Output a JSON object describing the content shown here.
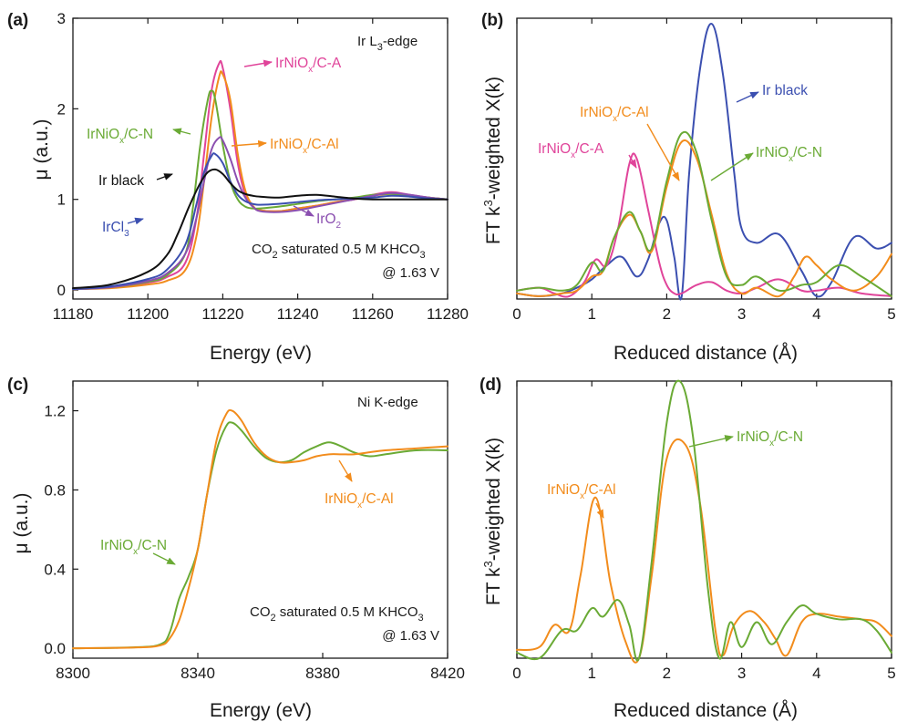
{
  "colors": {
    "pink": "#e0449a",
    "orange": "#f28c1c",
    "green": "#6aaa35",
    "blue": "#3b4fb0",
    "black": "#111111",
    "purple": "#8b4fb0"
  },
  "chart_data": [
    {
      "panel": "(a)",
      "type": "line",
      "xlabel": "Energy (eV)",
      "ylabel": "μ (a.u.)",
      "xlim": [
        11180,
        11280
      ],
      "ylim": [
        -0.1,
        3.0
      ],
      "xticks": [
        11180,
        11200,
        11220,
        11240,
        11260,
        11280
      ],
      "yticks": [
        0,
        1,
        2,
        3
      ],
      "annotations": {
        "edge": "Ir L3-edge",
        "condition": "CO2 saturated 0.5 M KHCO3",
        "potential": "@ 1.63 V"
      },
      "series": [
        {
          "name": "IrNiOx/C-A",
          "color": "#e0449a",
          "x": [
            11180,
            11190,
            11200,
            11205,
            11210,
            11213,
            11215,
            11217,
            11219,
            11220,
            11222,
            11224,
            11226,
            11228,
            11230,
            11235,
            11240,
            11245,
            11250,
            11255,
            11260,
            11265,
            11270,
            11275,
            11280
          ],
          "y": [
            0.01,
            0.03,
            0.08,
            0.14,
            0.3,
            0.8,
            1.5,
            2.2,
            2.5,
            2.45,
            2.0,
            1.4,
            1.05,
            0.92,
            0.88,
            0.87,
            0.9,
            0.93,
            0.97,
            1.0,
            1.05,
            1.08,
            1.05,
            1.02,
            1.0
          ]
        },
        {
          "name": "IrNiOx/C-Al",
          "color": "#f28c1c",
          "x": [
            11180,
            11190,
            11200,
            11205,
            11210,
            11213,
            11215,
            11217,
            11219,
            11220,
            11222,
            11224,
            11226,
            11228,
            11230,
            11235,
            11240,
            11245,
            11250,
            11255,
            11260,
            11265,
            11270,
            11275,
            11280
          ],
          "y": [
            0.01,
            0.02,
            0.06,
            0.1,
            0.22,
            0.6,
            1.2,
            1.9,
            2.35,
            2.38,
            2.1,
            1.5,
            1.1,
            0.93,
            0.88,
            0.87,
            0.9,
            0.93,
            0.97,
            1.0,
            1.04,
            1.06,
            1.04,
            1.02,
            1.0
          ]
        },
        {
          "name": "IrNiOx/C-N",
          "color": "#6aaa35",
          "x": [
            11180,
            11190,
            11200,
            11205,
            11210,
            11212,
            11214,
            11216,
            11217,
            11218,
            11220,
            11222,
            11224,
            11226,
            11228,
            11230,
            11235,
            11240,
            11245,
            11250,
            11255,
            11260,
            11265,
            11270,
            11275,
            11280
          ],
          "y": [
            0.01,
            0.03,
            0.09,
            0.16,
            0.4,
            0.9,
            1.6,
            2.1,
            2.2,
            2.1,
            1.6,
            1.2,
            1.0,
            0.92,
            0.9,
            0.9,
            0.92,
            0.95,
            0.98,
            1.0,
            1.02,
            1.05,
            1.06,
            1.04,
            1.02,
            1.0
          ]
        },
        {
          "name": "IrO2",
          "color": "#8b4fb0",
          "x": [
            11180,
            11190,
            11200,
            11205,
            11210,
            11213,
            11215,
            11217,
            11219,
            11220,
            11222,
            11224,
            11226,
            11228,
            11230,
            11235,
            11240,
            11245,
            11250,
            11255,
            11260,
            11265,
            11270,
            11275,
            11280
          ],
          "y": [
            0.01,
            0.03,
            0.1,
            0.18,
            0.4,
            0.8,
            1.2,
            1.55,
            1.68,
            1.65,
            1.45,
            1.2,
            1.02,
            0.92,
            0.87,
            0.86,
            0.88,
            0.92,
            0.96,
            1.0,
            1.04,
            1.07,
            1.05,
            1.02,
            1.0
          ]
        },
        {
          "name": "IrCl3",
          "color": "#3b4fb0",
          "x": [
            11180,
            11190,
            11200,
            11205,
            11210,
            11213,
            11215,
            11217,
            11218,
            11220,
            11222,
            11224,
            11226,
            11228,
            11230,
            11235,
            11240,
            11245,
            11250,
            11255,
            11260,
            11265,
            11270,
            11275,
            11280
          ],
          "y": [
            0.01,
            0.04,
            0.12,
            0.22,
            0.5,
            0.95,
            1.3,
            1.48,
            1.5,
            1.4,
            1.2,
            1.05,
            0.98,
            0.95,
            0.94,
            0.95,
            0.97,
            0.99,
            1.0,
            1.01,
            1.02,
            1.04,
            1.03,
            1.01,
            1.0
          ]
        },
        {
          "name": "Ir black",
          "color": "#111111",
          "x": [
            11180,
            11190,
            11200,
            11205,
            11208,
            11211,
            11214,
            11216,
            11218,
            11220,
            11222,
            11224,
            11226,
            11228,
            11230,
            11235,
            11240,
            11245,
            11250,
            11255,
            11260,
            11265,
            11270,
            11275,
            11280
          ],
          "y": [
            0.02,
            0.06,
            0.2,
            0.38,
            0.62,
            0.92,
            1.18,
            1.3,
            1.33,
            1.28,
            1.18,
            1.1,
            1.06,
            1.04,
            1.03,
            1.02,
            1.04,
            1.05,
            1.03,
            1.01,
            1.0,
            1.0,
            1.0,
            1.0,
            1.0
          ]
        }
      ]
    },
    {
      "panel": "(b)",
      "type": "line",
      "xlabel": "Reduced distance (Å)",
      "ylabel": "FT k3-weighted X(k)",
      "xlim": [
        0,
        5
      ],
      "ylim": [
        0,
        1
      ],
      "xticks": [
        0,
        1,
        2,
        3,
        4,
        5
      ],
      "series": [
        {
          "name": "Ir black",
          "color": "#3b4fb0",
          "x": [
            0,
            0.3,
            0.6,
            0.8,
            1.0,
            1.2,
            1.4,
            1.6,
            1.75,
            1.9,
            2.0,
            2.1,
            2.2,
            2.3,
            2.45,
            2.6,
            2.75,
            2.9,
            3.0,
            3.2,
            3.5,
            3.8,
            4.0,
            4.2,
            4.5,
            4.8,
            5.0
          ],
          "y": [
            0.02,
            0.01,
            0.02,
            0.04,
            0.07,
            0.12,
            0.15,
            0.08,
            0.14,
            0.27,
            0.28,
            0.15,
            0.01,
            0.45,
            0.83,
            0.98,
            0.8,
            0.45,
            0.25,
            0.2,
            0.23,
            0.1,
            0.01,
            0.06,
            0.22,
            0.18,
            0.2
          ]
        },
        {
          "name": "IrNiOx/C-A",
          "color": "#e0449a",
          "x": [
            0,
            0.3,
            0.5,
            0.7,
            0.9,
            1.05,
            1.2,
            1.35,
            1.5,
            1.6,
            1.75,
            1.9,
            2.0,
            2.1,
            2.2,
            2.4,
            2.6,
            2.8,
            3.0,
            3.2,
            3.5,
            3.8,
            4.0,
            4.3,
            4.6,
            5.0
          ],
          "y": [
            0.03,
            0.04,
            0.02,
            0.01,
            0.06,
            0.14,
            0.12,
            0.25,
            0.48,
            0.5,
            0.32,
            0.13,
            0.05,
            0.02,
            0.02,
            0.05,
            0.06,
            0.03,
            0.02,
            0.04,
            0.07,
            0.03,
            0.03,
            0.04,
            0.02,
            0.01
          ]
        },
        {
          "name": "IrNiOx/C-Al",
          "color": "#f28c1c",
          "x": [
            0,
            0.3,
            0.6,
            0.8,
            1.0,
            1.15,
            1.3,
            1.5,
            1.65,
            1.8,
            2.0,
            2.2,
            2.4,
            2.6,
            2.8,
            3.0,
            3.2,
            3.5,
            3.7,
            3.85,
            4.0,
            4.2,
            4.5,
            4.8,
            5.0
          ],
          "y": [
            0.02,
            0.01,
            0.02,
            0.03,
            0.08,
            0.1,
            0.22,
            0.3,
            0.24,
            0.17,
            0.4,
            0.56,
            0.5,
            0.3,
            0.09,
            0.02,
            0.04,
            0.01,
            0.08,
            0.15,
            0.12,
            0.07,
            0.03,
            0.08,
            0.16
          ]
        },
        {
          "name": "IrNiOx/C-N",
          "color": "#6aaa35",
          "x": [
            0,
            0.3,
            0.6,
            0.8,
            1.0,
            1.15,
            1.3,
            1.5,
            1.65,
            1.8,
            2.0,
            2.2,
            2.4,
            2.6,
            2.8,
            3.0,
            3.2,
            3.5,
            3.8,
            4.0,
            4.3,
            4.6,
            5.0
          ],
          "y": [
            0.03,
            0.04,
            0.03,
            0.05,
            0.13,
            0.1,
            0.22,
            0.31,
            0.24,
            0.18,
            0.42,
            0.59,
            0.52,
            0.28,
            0.08,
            0.05,
            0.08,
            0.03,
            0.05,
            0.06,
            0.12,
            0.08,
            0.01
          ]
        }
      ]
    },
    {
      "panel": "(c)",
      "type": "line",
      "xlabel": "Energy (eV)",
      "ylabel": "μ (a.u.)",
      "xlim": [
        8300,
        8420
      ],
      "ylim": [
        -0.05,
        1.35
      ],
      "xticks": [
        8300,
        8340,
        8380,
        8420
      ],
      "yticks": [
        0.0,
        0.4,
        0.8,
        1.2
      ],
      "annotations": {
        "edge": "Ni K-edge",
        "condition": "CO2 saturated 0.5 M KHCO3",
        "potential": "@ 1.63 V"
      },
      "series": [
        {
          "name": "IrNiOx/C-N",
          "color": "#6aaa35",
          "x": [
            8300,
            8320,
            8328,
            8331,
            8334,
            8337,
            8340,
            8343,
            8346,
            8349,
            8351,
            8354,
            8358,
            8362,
            8366,
            8370,
            8374,
            8378,
            8382,
            8386,
            8390,
            8395,
            8400,
            8410,
            8420
          ],
          "y": [
            0.0,
            0.005,
            0.02,
            0.08,
            0.25,
            0.36,
            0.5,
            0.78,
            1.0,
            1.12,
            1.14,
            1.1,
            1.02,
            0.96,
            0.94,
            0.95,
            0.99,
            1.02,
            1.04,
            1.02,
            0.99,
            0.97,
            0.98,
            1.0,
            1.0
          ]
        },
        {
          "name": "IrNiOx/C-Al",
          "color": "#f28c1c",
          "x": [
            8300,
            8320,
            8328,
            8331,
            8334,
            8337,
            8340,
            8343,
            8346,
            8349,
            8351,
            8354,
            8358,
            8362,
            8366,
            8370,
            8374,
            8378,
            8382,
            8386,
            8390,
            8395,
            8400,
            8410,
            8420
          ],
          "y": [
            0.0,
            0.004,
            0.015,
            0.05,
            0.14,
            0.3,
            0.5,
            0.78,
            1.05,
            1.18,
            1.2,
            1.15,
            1.04,
            0.97,
            0.94,
            0.94,
            0.95,
            0.97,
            0.98,
            0.98,
            0.98,
            0.99,
            1.0,
            1.01,
            1.02
          ]
        }
      ]
    },
    {
      "panel": "(d)",
      "type": "line",
      "xlabel": "Reduced distance (Å)",
      "ylabel": "FT k3-weighted X(k)",
      "xlim": [
        0,
        5
      ],
      "ylim": [
        0,
        1
      ],
      "xticks": [
        0,
        1,
        2,
        3,
        4,
        5
      ],
      "series": [
        {
          "name": "IrNiOx/C-Al",
          "color": "#f28c1c",
          "x": [
            0,
            0.3,
            0.5,
            0.7,
            0.85,
            1.05,
            1.25,
            1.45,
            1.63,
            1.8,
            2.0,
            2.25,
            2.45,
            2.65,
            2.75,
            2.9,
            3.1,
            3.3,
            3.45,
            3.6,
            3.8,
            4.0,
            4.3,
            4.6,
            4.8,
            5.0
          ],
          "y": [
            0.03,
            0.04,
            0.12,
            0.1,
            0.3,
            0.58,
            0.27,
            0.06,
            0.0,
            0.3,
            0.72,
            0.77,
            0.55,
            0.1,
            0.01,
            0.12,
            0.17,
            0.13,
            0.07,
            0.01,
            0.13,
            0.16,
            0.15,
            0.14,
            0.13,
            0.08
          ]
        },
        {
          "name": "IrNiOx/C-N",
          "color": "#6aaa35",
          "x": [
            0,
            0.3,
            0.6,
            0.8,
            1.0,
            1.15,
            1.35,
            1.5,
            1.63,
            1.8,
            2.0,
            2.17,
            2.35,
            2.55,
            2.7,
            2.85,
            3.0,
            3.2,
            3.4,
            3.6,
            3.8,
            4.0,
            4.3,
            4.6,
            4.8,
            5.0
          ],
          "y": [
            0.02,
            0.0,
            0.1,
            0.1,
            0.18,
            0.15,
            0.21,
            0.12,
            0.0,
            0.35,
            0.85,
            1.0,
            0.8,
            0.25,
            0.0,
            0.13,
            0.04,
            0.13,
            0.05,
            0.13,
            0.19,
            0.16,
            0.14,
            0.14,
            0.1,
            0.02
          ]
        }
      ]
    }
  ],
  "labels": {
    "a": {
      "panel": "(a)",
      "edge_main": "Ir L",
      "edge_sub": "3",
      "edge_tail": "-edge",
      "ca": "IrNiOx/C-A",
      "cal": "IrNiOx/C-Al",
      "cn": "IrNiOx/C-N",
      "irblack": "Ir black",
      "ircl3_main": "IrCl",
      "ircl3_sub": "3",
      "iro2_main": "IrO",
      "iro2_sub": "2",
      "cond_pre": "CO",
      "cond_sub": "2",
      "cond_mid": " saturated 0.5 M KHCO",
      "cond_sub2": "3",
      "potential": "@ 1.63 V",
      "ylabel": "μ (a.u.)",
      "xlabel": "Energy (eV)"
    },
    "b": {
      "panel": "(b)",
      "irblack": "Ir black",
      "ca": "IrNiOx/C-A",
      "cal": "IrNiOx/C-Al",
      "cn": "IrNiOx/C-N",
      "ylabel_pre": "FT k",
      "ylabel_sup": "3",
      "ylabel_post": "-weighted X(k)",
      "xlabel": "Reduced distance (Å)"
    },
    "c": {
      "panel": "(c)",
      "edge": "Ni K-edge",
      "cn": "IrNiOx/C-N",
      "cal": "IrNiOx/C-Al",
      "cond_pre": "CO",
      "cond_sub": "2",
      "cond_mid": " saturated 0.5 M KHCO",
      "cond_sub2": "3",
      "potential": "@ 1.63 V",
      "ylabel": "μ (a.u.)",
      "xlabel": "Energy (eV)"
    },
    "d": {
      "panel": "(d)",
      "cn": "IrNiOx/C-N",
      "cal": "IrNiOx/C-Al",
      "ylabel_pre": "FT k",
      "ylabel_sup": "3",
      "ylabel_post": "-weighted X(k)",
      "xlabel": "Reduced distance (Å)"
    }
  }
}
